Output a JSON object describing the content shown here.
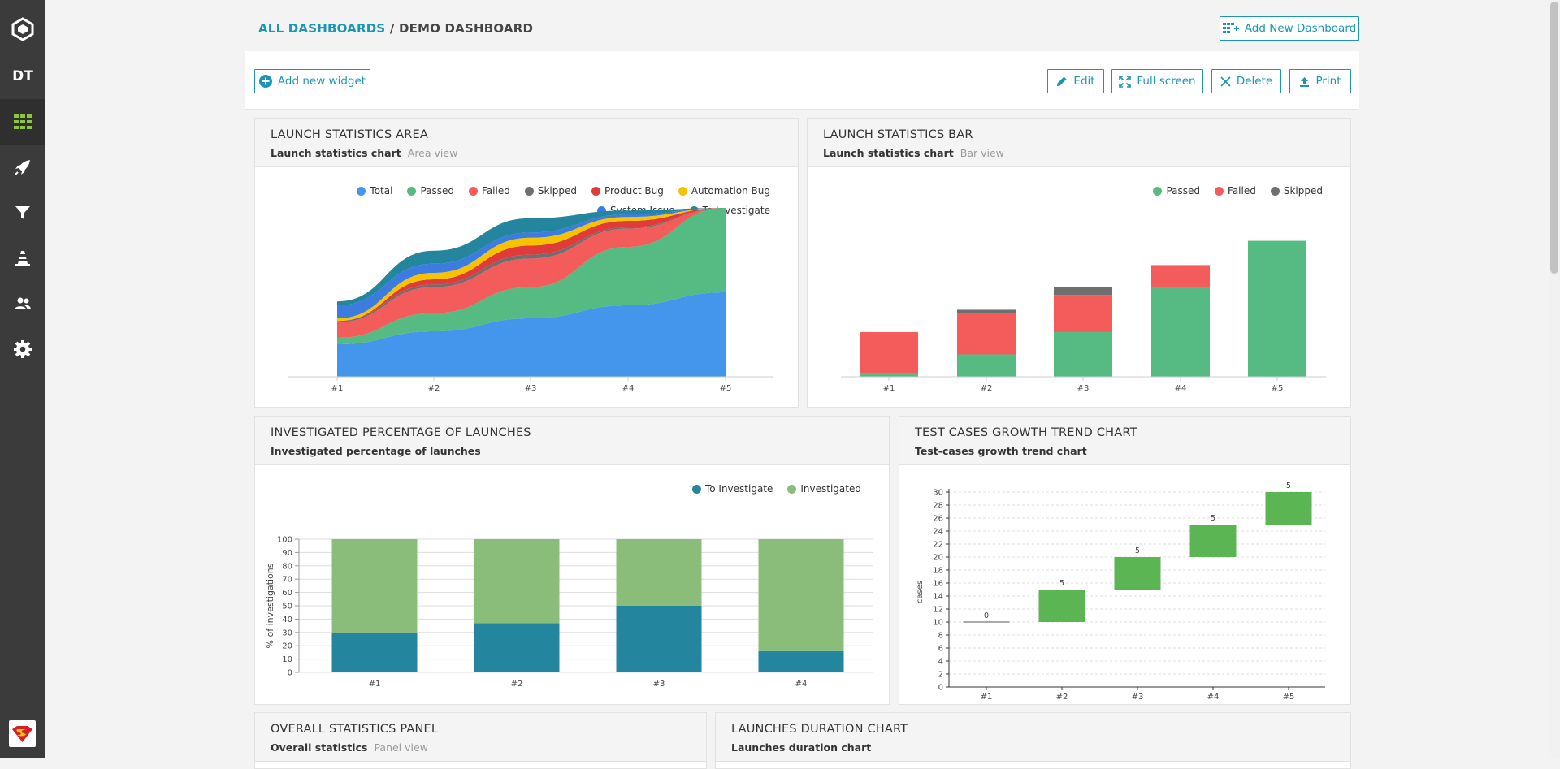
{
  "sidebar": {
    "project_initials": "DT",
    "items": [
      {
        "name": "logo",
        "icon": "logo-icon"
      },
      {
        "name": "project",
        "icon": "project-icon"
      },
      {
        "name": "dashboards",
        "icon": "dashboard-grid-icon",
        "active": true
      },
      {
        "name": "launches",
        "icon": "rocket-icon"
      },
      {
        "name": "filters",
        "icon": "filter-icon"
      },
      {
        "name": "debug",
        "icon": "debug-cone-icon"
      },
      {
        "name": "members",
        "icon": "members-icon"
      },
      {
        "name": "settings",
        "icon": "gear-icon"
      }
    ],
    "active_color": "#8cc63f"
  },
  "header": {
    "breadcrumb_link": "ALL DASHBOARDS",
    "breadcrumb_separator": "/",
    "breadcrumb_current": "DEMO DASHBOARD",
    "add_dashboard_label": "Add New Dashboard"
  },
  "toolbar": {
    "add_widget_label": "Add new widget",
    "edit_label": "Edit",
    "fullscreen_label": "Full screen",
    "delete_label": "Delete",
    "print_label": "Print"
  },
  "colors": {
    "accent": "#1a96b4",
    "total": "#4496ec",
    "passed": "#56bb83",
    "failed": "#f45b5b",
    "skipped": "#6f6f6f",
    "product_bug": "#e03a3a",
    "automation_bug": "#f7c300",
    "system_issue": "#3c7be0",
    "to_investigate": "#23869e",
    "investigated": "#8bbd7a",
    "growth": "#5ab552"
  },
  "widgets": {
    "area": {
      "title": "LAUNCH STATISTICS AREA",
      "subtitle": "Launch statistics chart",
      "view": "Area view",
      "chart_data": {
        "type": "area",
        "categories": [
          "#1",
          "#2",
          "#3",
          "#4",
          "#5"
        ],
        "legend": [
          "Total",
          "Passed",
          "Failed",
          "Skipped",
          "Product Bug",
          "Automation Bug",
          "System Issue",
          "To Investigate"
        ],
        "series": [
          {
            "name": "Total",
            "color": "#4496ec",
            "values": [
              25,
              35,
              45,
              55,
              65
            ]
          },
          {
            "name": "Passed",
            "color": "#56bb83",
            "values": [
              5,
              14,
              24,
              45,
              65
            ]
          },
          {
            "name": "Failed",
            "color": "#f45b5b",
            "values": [
              12,
              20,
              22,
              14,
              0
            ]
          },
          {
            "name": "Skipped",
            "color": "#6f6f6f",
            "values": [
              1,
              2,
              3,
              1,
              0
            ]
          },
          {
            "name": "Product Bug",
            "color": "#e03a3a",
            "values": [
              0,
              4,
              7,
              5,
              0
            ]
          },
          {
            "name": "Automation Bug",
            "color": "#f7c300",
            "values": [
              2,
              5,
              6,
              3,
              0
            ]
          },
          {
            "name": "System Issue",
            "color": "#3c7be0",
            "values": [
              10,
              7,
              4,
              2,
              0
            ]
          },
          {
            "name": "To Investigate",
            "color": "#23869e",
            "values": [
              3,
              10,
              11,
              3,
              0
            ]
          }
        ]
      }
    },
    "bar": {
      "title": "LAUNCH STATISTICS BAR",
      "subtitle": "Launch statistics chart",
      "view": "Bar view",
      "chart_data": {
        "type": "bar",
        "stacked": true,
        "categories": [
          "#1",
          "#2",
          "#3",
          "#4",
          "#5"
        ],
        "series": [
          {
            "name": "Passed",
            "color": "#56bb83",
            "values": [
              2,
              12,
              24,
              48,
              73
            ]
          },
          {
            "name": "Failed",
            "color": "#f45b5b",
            "values": [
              22,
              22,
              20,
              12,
              0
            ]
          },
          {
            "name": "Skipped",
            "color": "#6f6f6f",
            "values": [
              0,
              2,
              4,
              0,
              0
            ]
          }
        ],
        "ylim": [
          0,
          75
        ]
      }
    },
    "investigated": {
      "title": "INVESTIGATED PERCENTAGE OF LAUNCHES",
      "subtitle": "Investigated percentage of launches",
      "chart_data": {
        "type": "bar",
        "stacked": true,
        "categories": [
          "#1",
          "#2",
          "#3",
          "#4"
        ],
        "ylabel": "% of investigations",
        "yticks": [
          "0",
          "10",
          "20",
          "30",
          "40",
          "50",
          "60",
          "70",
          "80",
          "90",
          "100"
        ],
        "ylim": [
          0,
          100
        ],
        "series": [
          {
            "name": "To Investigate",
            "color": "#23869e",
            "values": [
              30,
              37,
              50,
              16
            ]
          },
          {
            "name": "Investigated",
            "color": "#8bbd7a",
            "values": [
              70,
              63,
              50,
              84
            ]
          }
        ]
      }
    },
    "growth": {
      "title": "TEST CASES GROWTH TREND CHART",
      "subtitle": "Test-cases growth trend chart",
      "chart_data": {
        "type": "bar",
        "waterfall": true,
        "categories": [
          "#1",
          "#2",
          "#3",
          "#4",
          "#5"
        ],
        "ylabel": "cases",
        "ylim": [
          0,
          30
        ],
        "yticks": [
          "0",
          "2",
          "4",
          "6",
          "8",
          "10",
          "12",
          "14",
          "16",
          "18",
          "20",
          "22",
          "24",
          "26",
          "28",
          "30"
        ],
        "base": [
          10,
          10,
          15,
          20,
          25
        ],
        "values": [
          0,
          5,
          5,
          5,
          5
        ],
        "labels": [
          "0",
          "5",
          "5",
          "5",
          "5"
        ]
      }
    },
    "overall": {
      "title": "OVERALL STATISTICS PANEL",
      "subtitle": "Overall statistics",
      "view": "Panel view"
    },
    "duration": {
      "title": "LAUNCHES DURATION CHART",
      "subtitle": "Launches duration chart"
    }
  }
}
